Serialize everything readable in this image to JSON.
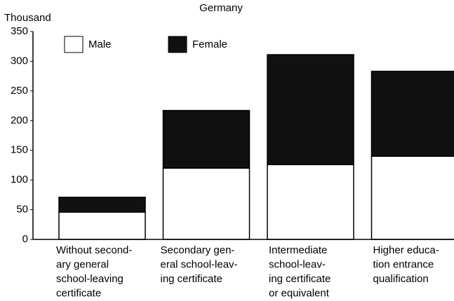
{
  "chart_data": {
    "type": "stacked-bar",
    "subtitle": "Germany",
    "y_label": "Thousand",
    "categories": [
      [
        "Without second-",
        "ary general",
        "school-leaving",
        "certificate"
      ],
      [
        "Secondary gen-",
        "eral school-leav-",
        "ing certificate"
      ],
      [
        "Intermediate",
        "school-leav-",
        "ing certificate",
        "or equivalent"
      ],
      [
        "Higher educa-",
        "tion entrance",
        "qualification"
      ]
    ],
    "series": [
      {
        "name": "Male",
        "color": "#ffffff",
        "values": [
          46,
          120,
          126,
          140
        ]
      },
      {
        "name": "Female",
        "color": "#111111",
        "values": [
          25,
          97,
          185,
          143
        ]
      }
    ],
    "ylim": [
      0,
      350
    ],
    "yticks": [
      0,
      50,
      100,
      150,
      200,
      250,
      300,
      350
    ],
    "legend": "top-left"
  }
}
